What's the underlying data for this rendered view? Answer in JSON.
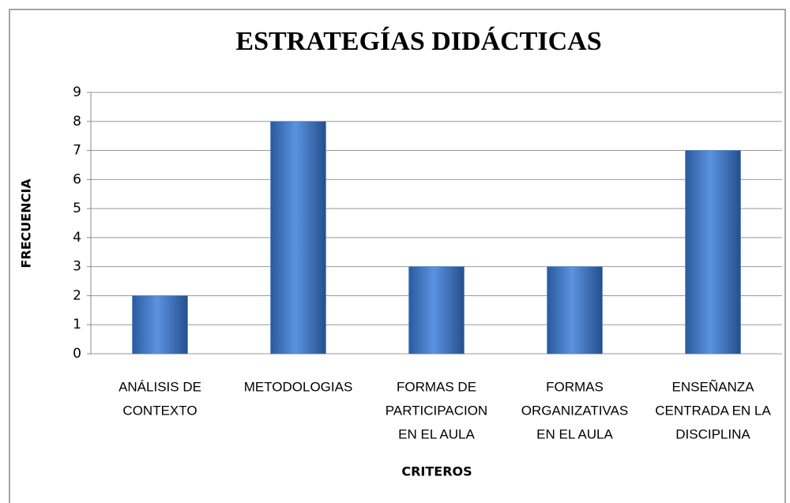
{
  "chart_data": {
    "type": "bar",
    "title": "ESTRATEGÍAS DIDÁCTICAS",
    "y_label": "FRECUENCIA",
    "x_label": "CRITEROS",
    "categories": [
      [
        "ANÁLISIS DE",
        "CONTEXTO"
      ],
      [
        "METODOLOGIAS"
      ],
      [
        "FORMAS DE",
        "PARTICIPACION",
        "EN EL AULA"
      ],
      [
        "FORMAS",
        "ORGANIZATIVAS",
        "EN EL AULA"
      ],
      [
        "ENSEÑANZA",
        "CENTRADA EN LA",
        "DISCIPLINA"
      ]
    ],
    "values": [
      2,
      8,
      3,
      3,
      7
    ],
    "color": "#4a7fcc",
    "ylim": [
      0,
      9
    ],
    "yticks": [
      0,
      1,
      2,
      3,
      4,
      5,
      6,
      7,
      8,
      9
    ],
    "grid": true
  }
}
